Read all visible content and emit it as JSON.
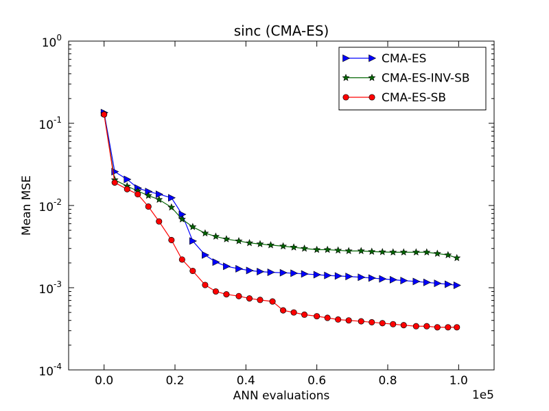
{
  "chart_data": {
    "type": "line",
    "title": "sinc (CMA-ES)",
    "xlabel": "ANN evaluations",
    "ylabel": "Mean MSE",
    "x_scale_label": "1e5",
    "xlim": [
      -0.1,
      1.1
    ],
    "ylim_log10": [
      -4,
      0
    ],
    "y_scale": "log",
    "grid": false,
    "legend_position": "top-right",
    "x_ticks": [
      {
        "value": 0.0,
        "label": "0.0"
      },
      {
        "value": 0.2,
        "label": "0.2"
      },
      {
        "value": 0.4,
        "label": "0.4"
      },
      {
        "value": 0.6,
        "label": "0.6"
      },
      {
        "value": 0.8,
        "label": "0.8"
      },
      {
        "value": 1.0,
        "label": "1.0"
      }
    ],
    "y_ticks": [
      {
        "exp": 0,
        "base": "10",
        "sup": "0"
      },
      {
        "exp": -1,
        "base": "10",
        "sup": "-1"
      },
      {
        "exp": -2,
        "base": "10",
        "sup": "-2"
      },
      {
        "exp": -3,
        "base": "10",
        "sup": "-3"
      },
      {
        "exp": -4,
        "base": "10",
        "sup": "-4"
      }
    ],
    "series": [
      {
        "name": "CMA-ES",
        "color": "#0000ff",
        "marker": "triangle-right",
        "x": [
          0.0,
          0.03,
          0.065,
          0.095,
          0.125,
          0.155,
          0.19,
          0.22,
          0.25,
          0.285,
          0.315,
          0.345,
          0.38,
          0.41,
          0.44,
          0.47,
          0.505,
          0.535,
          0.565,
          0.6,
          0.63,
          0.66,
          0.69,
          0.725,
          0.755,
          0.785,
          0.815,
          0.845,
          0.88,
          0.91,
          0.94,
          0.97,
          0.995
        ],
        "y": [
          0.135,
          0.0258,
          0.0208,
          0.0163,
          0.0148,
          0.0137,
          0.0124,
          0.0078,
          0.0037,
          0.0025,
          0.00205,
          0.00182,
          0.0017,
          0.00162,
          0.00157,
          0.00154,
          0.00152,
          0.0015,
          0.00147,
          0.00144,
          0.00141,
          0.00139,
          0.00137,
          0.00134,
          0.00131,
          0.00128,
          0.00125,
          0.00122,
          0.00119,
          0.00116,
          0.00113,
          0.0011,
          0.00107
        ]
      },
      {
        "name": "CMA-ES-INV-SB",
        "color": "#006400",
        "marker": "star",
        "x": [
          0.0,
          0.03,
          0.065,
          0.095,
          0.125,
          0.155,
          0.19,
          0.22,
          0.25,
          0.285,
          0.315,
          0.345,
          0.38,
          0.41,
          0.44,
          0.47,
          0.505,
          0.535,
          0.565,
          0.6,
          0.63,
          0.66,
          0.69,
          0.725,
          0.755,
          0.785,
          0.815,
          0.845,
          0.88,
          0.91,
          0.94,
          0.97,
          0.995
        ],
        "y": [
          0.13,
          0.0205,
          0.0172,
          0.015,
          0.0132,
          0.0118,
          0.0095,
          0.0068,
          0.0055,
          0.0046,
          0.0042,
          0.0039,
          0.0037,
          0.0035,
          0.0034,
          0.0033,
          0.0032,
          0.0031,
          0.003,
          0.0029,
          0.0029,
          0.00285,
          0.0028,
          0.0028,
          0.00275,
          0.00272,
          0.0027,
          0.0027,
          0.0027,
          0.0027,
          0.0026,
          0.0025,
          0.0023
        ]
      },
      {
        "name": "CMA-ES-SB",
        "color": "#ff0000",
        "marker": "circle",
        "x": [
          0.0,
          0.03,
          0.065,
          0.095,
          0.125,
          0.155,
          0.19,
          0.22,
          0.25,
          0.285,
          0.315,
          0.345,
          0.38,
          0.41,
          0.44,
          0.475,
          0.505,
          0.535,
          0.565,
          0.6,
          0.63,
          0.66,
          0.69,
          0.725,
          0.755,
          0.785,
          0.815,
          0.845,
          0.88,
          0.91,
          0.94,
          0.97,
          0.995
        ],
        "y": [
          0.128,
          0.019,
          0.0158,
          0.0137,
          0.0097,
          0.0064,
          0.0038,
          0.0022,
          0.0016,
          0.00108,
          0.0009,
          0.00083,
          0.00079,
          0.00074,
          0.00071,
          0.00068,
          0.00053,
          0.0005,
          0.00047,
          0.00045,
          0.00043,
          0.00041,
          0.0004,
          0.00039,
          0.00038,
          0.00037,
          0.00036,
          0.00035,
          0.00034,
          0.00034,
          0.00033,
          0.00033,
          0.00033
        ]
      }
    ]
  }
}
